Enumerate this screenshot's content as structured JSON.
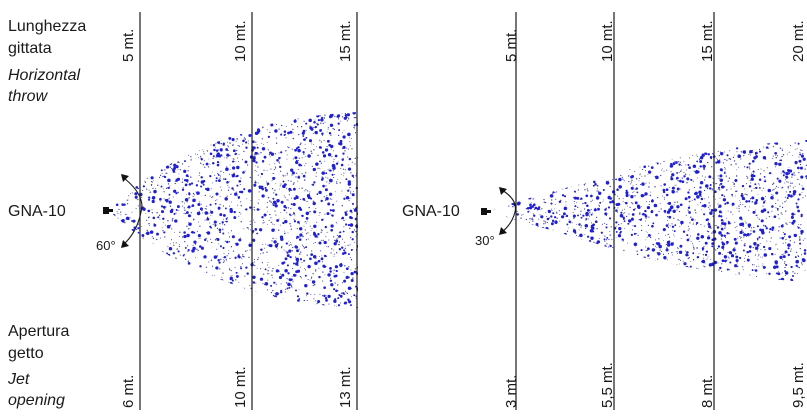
{
  "labels": {
    "throw_it_1": "Lunghezza",
    "throw_it_2": "gittata",
    "throw_en_1": "Horizontal",
    "throw_en_2": "throw",
    "open_it_1": "Apertura",
    "open_it_2": "getto",
    "open_en_1": "Jet",
    "open_en_2": "opening"
  },
  "diagrams": [
    {
      "model": "GNA-10",
      "angle": "60°",
      "throw_labels": [
        "5 mt.",
        "10 mt.",
        "15 mt."
      ],
      "opening_labels": [
        "6 mt.",
        "10 mt.",
        "13 mt."
      ]
    },
    {
      "model": "GNA-10",
      "angle": "30°",
      "throw_labels": [
        "5 mt.",
        "10 mt.",
        "15 mt.",
        "20 mt."
      ],
      "opening_labels": [
        "3 mt.",
        "5,5 mt.",
        "8 mt.",
        "9,5 mt."
      ]
    }
  ],
  "colors": {
    "spray_dots": "#1f1fd6",
    "spray_fine": "#3a3aa0",
    "lines": "#1a1a1a"
  }
}
